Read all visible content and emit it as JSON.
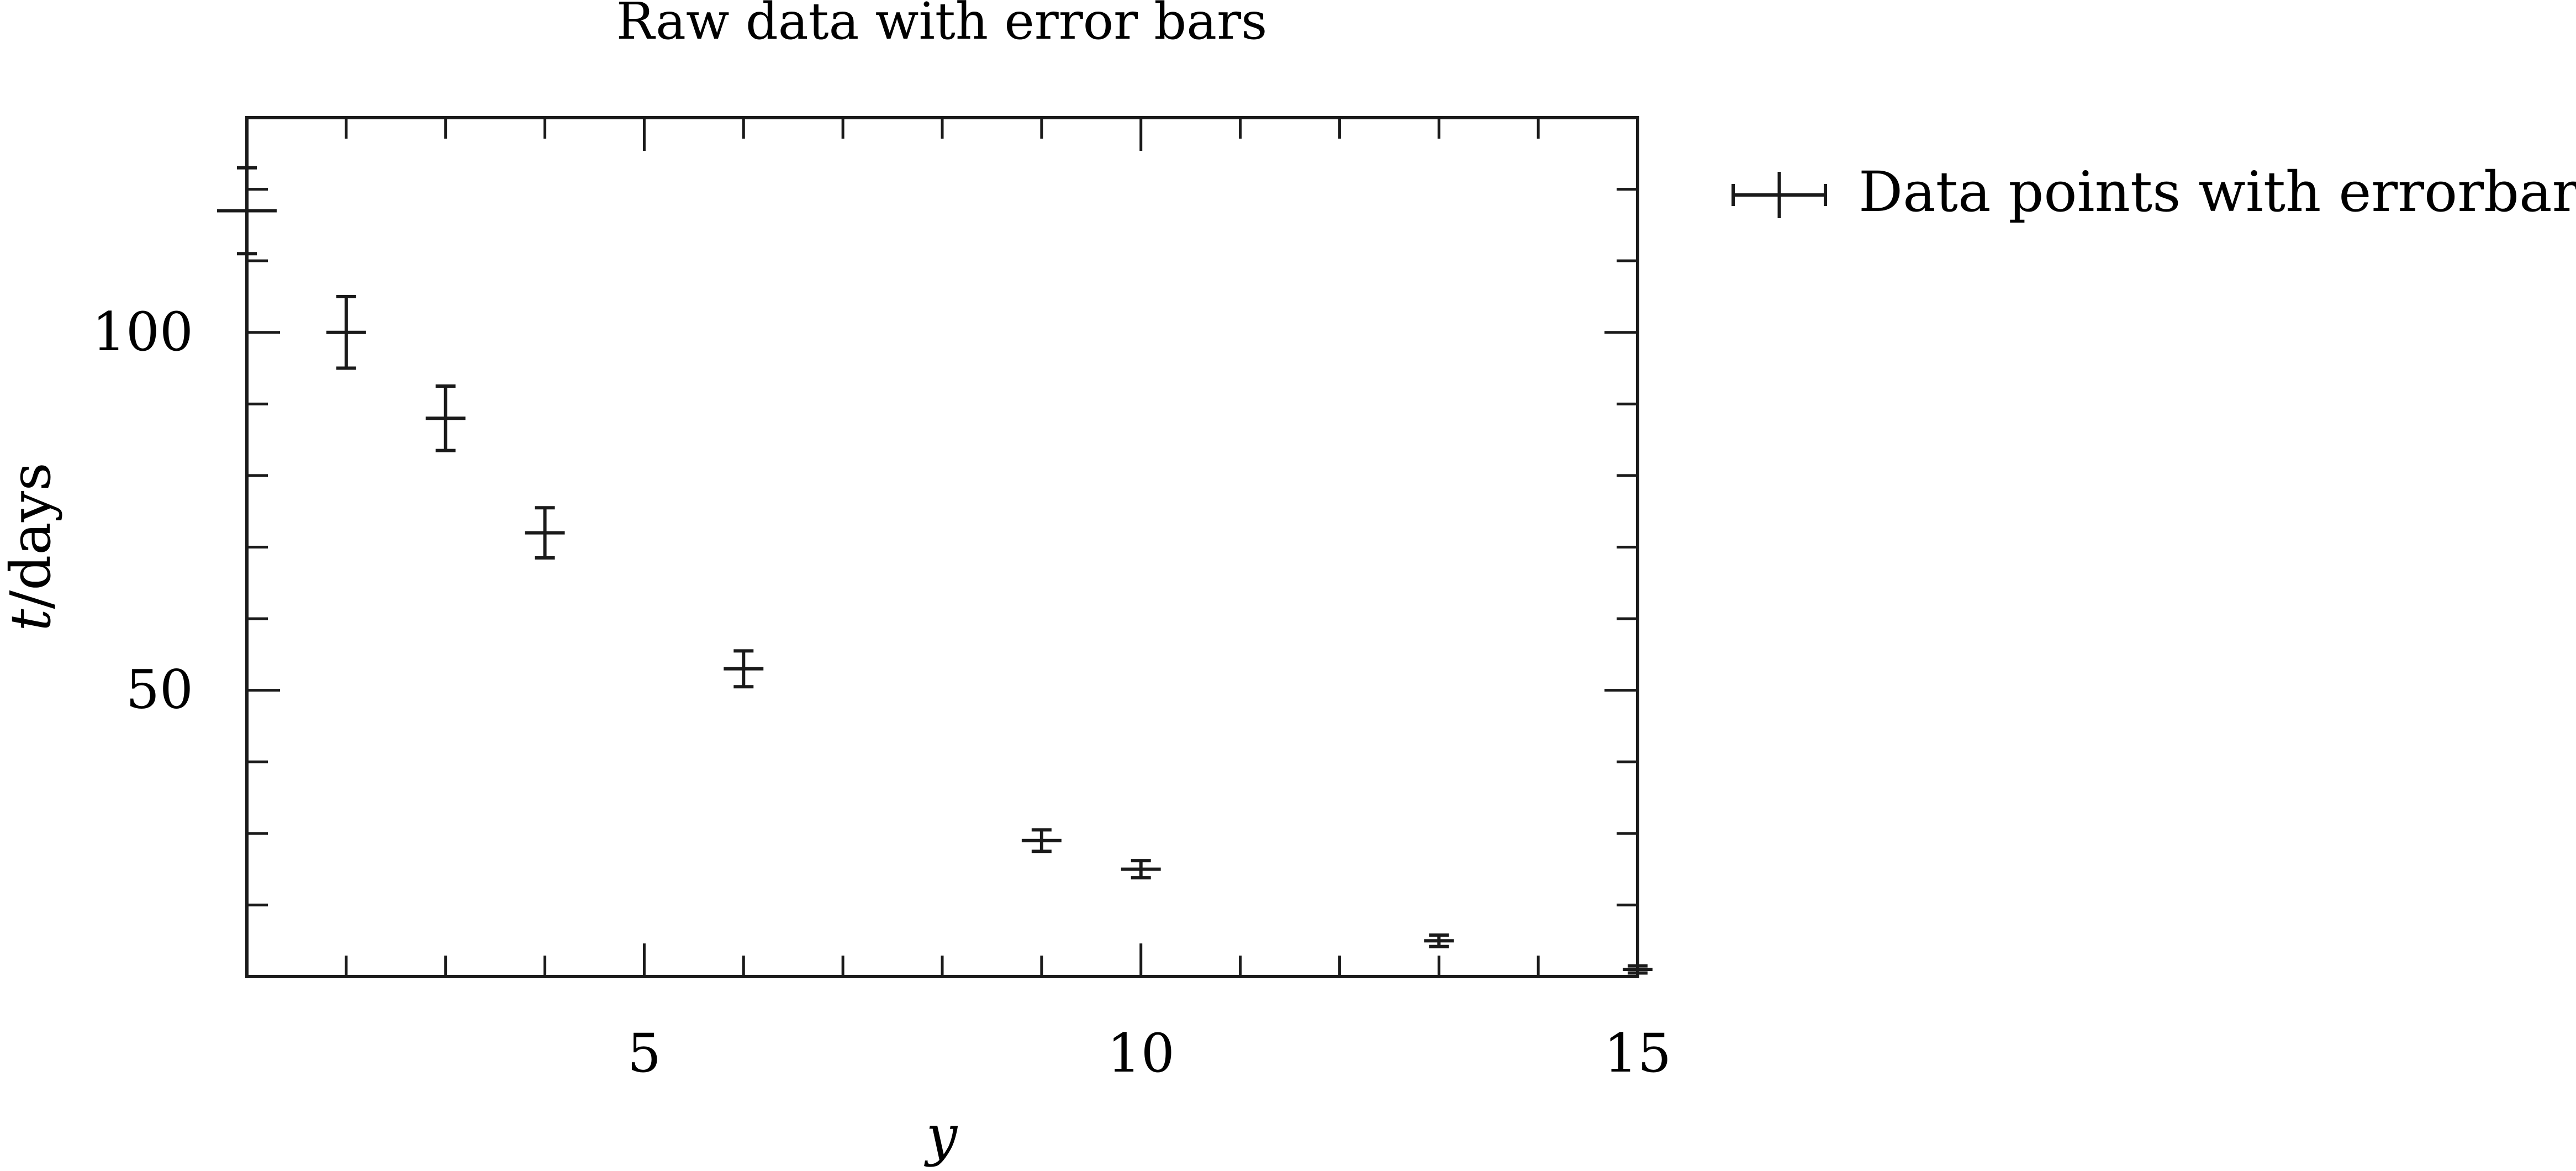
{
  "chart_data": {
    "type": "scatter",
    "title": "Raw data with error bars",
    "xlabel": "y",
    "ylabel": "t/days",
    "xlim": [
      1,
      15
    ],
    "ylim": [
      10,
      130
    ],
    "x_ticks": [
      5,
      10,
      15
    ],
    "y_ticks": [
      50,
      100
    ],
    "x_minor_ticks": [
      1,
      2,
      3,
      4,
      5,
      6,
      7,
      8,
      9,
      10,
      11,
      12,
      13,
      14,
      15
    ],
    "y_minor_ticks": [
      20,
      30,
      40,
      50,
      60,
      70,
      80,
      90,
      100,
      110,
      120
    ],
    "grid": false,
    "legend_position": "outside-right-top",
    "series": [
      {
        "name": "Data points with errorbars",
        "marker": "errorbar",
        "color": "#1a1a1a",
        "x": [
          1,
          2,
          3,
          4,
          6,
          9,
          10,
          13,
          15
        ],
        "y": [
          117,
          100,
          88,
          72,
          53,
          29,
          25,
          15,
          11
        ],
        "xerr": [
          0.3,
          0.2,
          0.2,
          0.2,
          0.2,
          0.2,
          0.2,
          0.15,
          0.15
        ],
        "yerr": [
          6,
          5,
          4.5,
          3.5,
          2.5,
          1.5,
          1.2,
          0.8,
          0.5
        ]
      }
    ]
  }
}
